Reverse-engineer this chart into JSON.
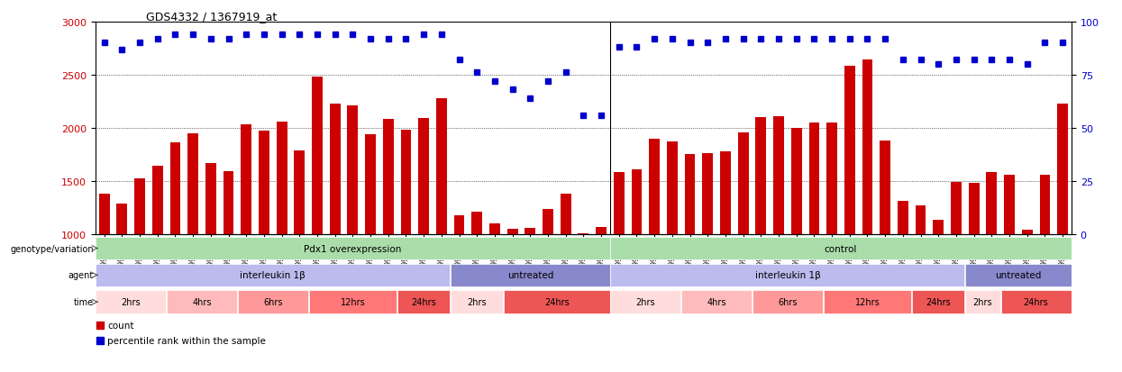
{
  "title": "GDS4332 / 1367919_at",
  "bar_color": "#cc0000",
  "dot_color": "#0000cc",
  "ylim_left": [
    1000,
    3000
  ],
  "ylim_right": [
    0,
    100
  ],
  "yticks_left": [
    1000,
    1500,
    2000,
    2500,
    3000
  ],
  "yticks_right": [
    0,
    25,
    50,
    75,
    100
  ],
  "sample_ids": [
    "GSM998740",
    "GSM998753",
    "GSM998766",
    "GSM998774",
    "GSM998729",
    "GSM998754",
    "GSM998767",
    "GSM998775",
    "GSM998741",
    "GSM998755",
    "GSM998768",
    "GSM998776",
    "GSM998730",
    "GSM998742",
    "GSM998747",
    "GSM998777",
    "GSM998731",
    "GSM998748",
    "GSM998756",
    "GSM998769",
    "GSM998732",
    "GSM998749",
    "GSM998757",
    "GSM998778",
    "GSM998733",
    "GSM998758",
    "GSM998770",
    "GSM998779",
    "GSM998734",
    "GSM998743",
    "GSM998759",
    "GSM998750",
    "GSM998735",
    "GSM998760",
    "GSM998782",
    "GSM998744",
    "GSM998751",
    "GSM998761",
    "GSM998771",
    "GSM998736",
    "GSM998745",
    "GSM998762",
    "GSM998781",
    "GSM998737",
    "GSM998752",
    "GSM998763",
    "GSM998772",
    "GSM998738",
    "GSM998764",
    "GSM998773",
    "GSM998783",
    "GSM998739",
    "GSM998746",
    "GSM998765",
    "GSM998784"
  ],
  "bar_values": [
    1380,
    1290,
    1520,
    1640,
    1860,
    1950,
    1670,
    1590,
    2030,
    1970,
    2060,
    1790,
    2480,
    2230,
    2210,
    1940,
    2080,
    1980,
    2090,
    2280,
    1180,
    1210,
    1100,
    1050,
    1060,
    1240,
    1380,
    1010,
    1070,
    1580,
    1610,
    1900,
    1870,
    1750,
    1760,
    1780,
    1960,
    2100,
    2110,
    2000,
    2050,
    2050,
    2580,
    2640,
    1880,
    1310,
    1270,
    1130,
    1490,
    1480,
    1580,
    1560,
    1040,
    1560,
    2230
  ],
  "dot_values_pct": [
    90,
    87,
    90,
    92,
    94,
    94,
    92,
    92,
    94,
    94,
    94,
    94,
    94,
    94,
    94,
    92,
    92,
    92,
    94,
    94,
    82,
    76,
    72,
    68,
    64,
    72,
    76,
    56,
    56,
    88,
    88,
    92,
    92,
    90,
    90,
    92,
    92,
    92,
    92,
    92,
    92,
    92,
    92,
    92,
    92,
    82,
    82,
    80,
    82,
    82,
    82,
    82,
    80,
    90,
    90
  ],
  "genotype_regions": [
    {
      "label": "Pdx1 overexpression",
      "start": 0,
      "end": 29,
      "color": "#aaddaa"
    },
    {
      "label": "control",
      "start": 29,
      "end": 55,
      "color": "#aaddaa"
    }
  ],
  "agent_regions": [
    {
      "label": "interleukin 1β",
      "start": 0,
      "end": 20,
      "color": "#bbbbee"
    },
    {
      "label": "untreated",
      "start": 20,
      "end": 29,
      "color": "#8888cc"
    },
    {
      "label": "interleukin 1β",
      "start": 29,
      "end": 49,
      "color": "#bbbbee"
    },
    {
      "label": "untreated",
      "start": 49,
      "end": 55,
      "color": "#8888cc"
    }
  ],
  "time_regions": [
    {
      "label": "2hrs",
      "start": 0,
      "end": 4,
      "color": "#ffdddd"
    },
    {
      "label": "4hrs",
      "start": 4,
      "end": 8,
      "color": "#ffbbbb"
    },
    {
      "label": "6hrs",
      "start": 8,
      "end": 12,
      "color": "#ff9999"
    },
    {
      "label": "12hrs",
      "start": 12,
      "end": 17,
      "color": "#ff7777"
    },
    {
      "label": "24hrs",
      "start": 17,
      "end": 20,
      "color": "#ee5555"
    },
    {
      "label": "2hrs",
      "start": 20,
      "end": 23,
      "color": "#ffdddd"
    },
    {
      "label": "24hrs",
      "start": 23,
      "end": 29,
      "color": "#ee5555"
    },
    {
      "label": "2hrs",
      "start": 29,
      "end": 33,
      "color": "#ffdddd"
    },
    {
      "label": "4hrs",
      "start": 33,
      "end": 37,
      "color": "#ffbbbb"
    },
    {
      "label": "6hrs",
      "start": 37,
      "end": 41,
      "color": "#ff9999"
    },
    {
      "label": "12hrs",
      "start": 41,
      "end": 46,
      "color": "#ff7777"
    },
    {
      "label": "24hrs",
      "start": 46,
      "end": 49,
      "color": "#ee5555"
    },
    {
      "label": "2hrs",
      "start": 49,
      "end": 51,
      "color": "#ffdddd"
    },
    {
      "label": "24hrs",
      "start": 51,
      "end": 55,
      "color": "#ee5555"
    }
  ],
  "label_genotype": "genotype/variation",
  "label_agent": "agent",
  "label_time": "time",
  "legend_count": "count",
  "legend_pct": "percentile rank within the sample",
  "bg_color": "#ffffff"
}
